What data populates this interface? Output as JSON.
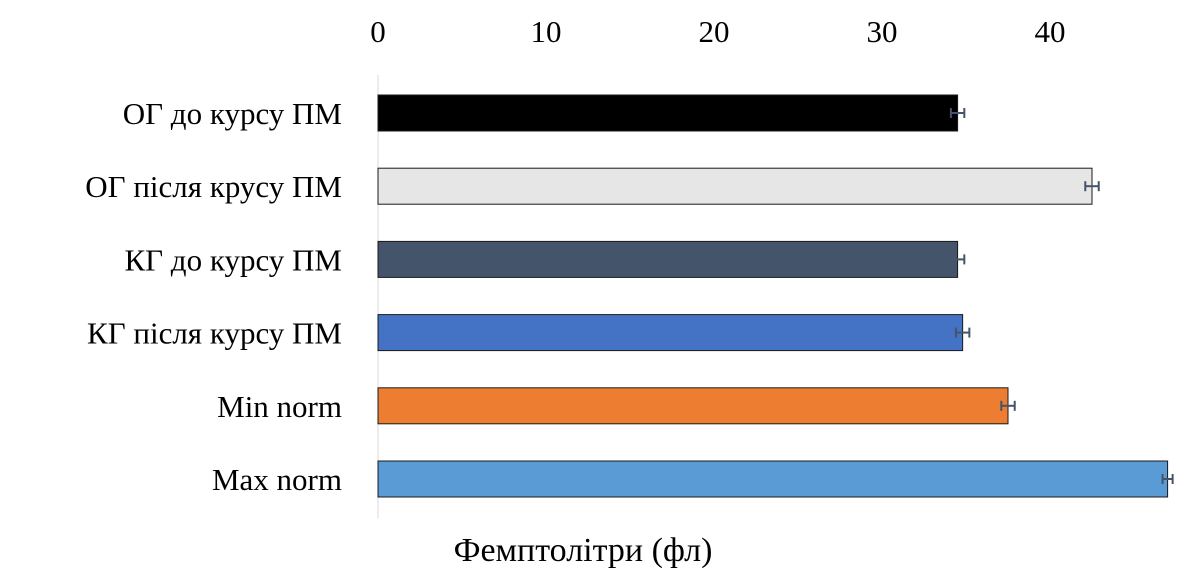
{
  "chart_data": {
    "type": "bar",
    "orientation": "horizontal",
    "categories": [
      "ОГ до курсу ПМ",
      "ОГ після крусу ПМ",
      "КГ до курсу ПМ",
      "КГ після курсу ПМ",
      "Min norm",
      "Max norm"
    ],
    "values": [
      34.5,
      42.5,
      34.5,
      34.8,
      37.5,
      47.0
    ],
    "errors": [
      0.4,
      0.4,
      0.4,
      0.4,
      0.4,
      0.3
    ],
    "bar_colors": [
      "#000000",
      "#e6e6e6",
      "#44546a",
      "#4472c4",
      "#ed7d31",
      "#5b9bd5"
    ],
    "title": "",
    "xlabel": "Фемптолітри (фл)",
    "ylabel": "",
    "xlim": [
      0,
      47.5
    ],
    "xticks": [
      0,
      10,
      20,
      30,
      40
    ],
    "x_axis_position": "top",
    "grid": false,
    "legend": "none"
  }
}
